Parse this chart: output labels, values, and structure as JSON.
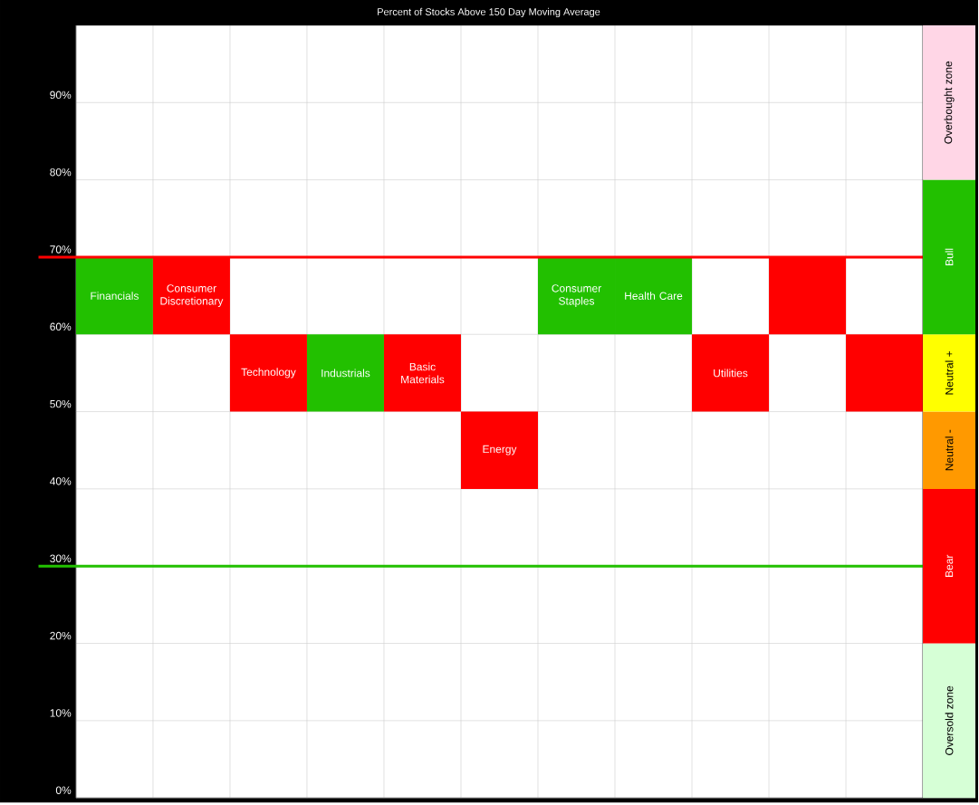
{
  "chart_data": [
    {
      "type": "bar",
      "title": "Percent of Stocks Above 150 Day Moving Average",
      "categories": [
        "Financials",
        "Consumer Discretionary",
        "Technology",
        "Industrials",
        "Basic Materials",
        "Energy",
        "Consumer Staples",
        "Health Care",
        "Utilities",
        null,
        null
      ],
      "values": [
        10,
        10,
        10,
        10,
        10,
        10,
        10,
        10,
        10,
        10,
        10
      ],
      "base": [
        60,
        60,
        50,
        50,
        50,
        40,
        60,
        60,
        50,
        60,
        50
      ],
      "colors": [
        "#22c000",
        "#ff0000",
        "#ff0000",
        "#22c000",
        "#ff0000",
        "#ff0000",
        "#22c000",
        "#22c000",
        "#ff0000",
        "#ff0000",
        "#ff0000"
      ],
      "ylim": [
        0,
        100
      ],
      "yticks": [
        {
          "value": 0,
          "label": "0%"
        },
        {
          "value": 10,
          "label": "10%"
        },
        {
          "value": 20,
          "label": "20%"
        },
        {
          "value": 30,
          "label": "30%"
        },
        {
          "value": 40,
          "label": "40%"
        },
        {
          "value": 50,
          "label": "50%"
        },
        {
          "value": 60,
          "label": "60%"
        },
        {
          "value": 70,
          "label": "70%"
        },
        {
          "value": 80,
          "label": "80%"
        },
        {
          "value": 90,
          "label": "90%"
        }
      ],
      "grid": true,
      "tick_labels": "y",
      "ref_lines": [
        {
          "axis": "y",
          "value": 70,
          "color": "#ff0000"
        },
        {
          "axis": "y",
          "value": 30,
          "color": "#22c000"
        }
      ]
    },
    {
      "type": "bar",
      "stacked": true,
      "categories": [
        null
      ],
      "ylim": [
        0,
        100
      ],
      "tick_labels": false,
      "series": [
        {
          "name": "Oversold zone",
          "color": "#d6ffd6",
          "values": [
            20
          ]
        },
        {
          "name": "Bear",
          "color": "#ff0000",
          "values": [
            20
          ]
        },
        {
          "name": "Neutral -",
          "color": "#ff9900",
          "values": [
            10
          ]
        },
        {
          "name": "Neutral +",
          "color": "#ffff00",
          "values": [
            10
          ]
        },
        {
          "name": "Bull",
          "color": "#22c000",
          "values": [
            20
          ]
        },
        {
          "name": "Overbought zone",
          "color": "#ffd6e6",
          "values": [
            20
          ]
        }
      ]
    }
  ]
}
